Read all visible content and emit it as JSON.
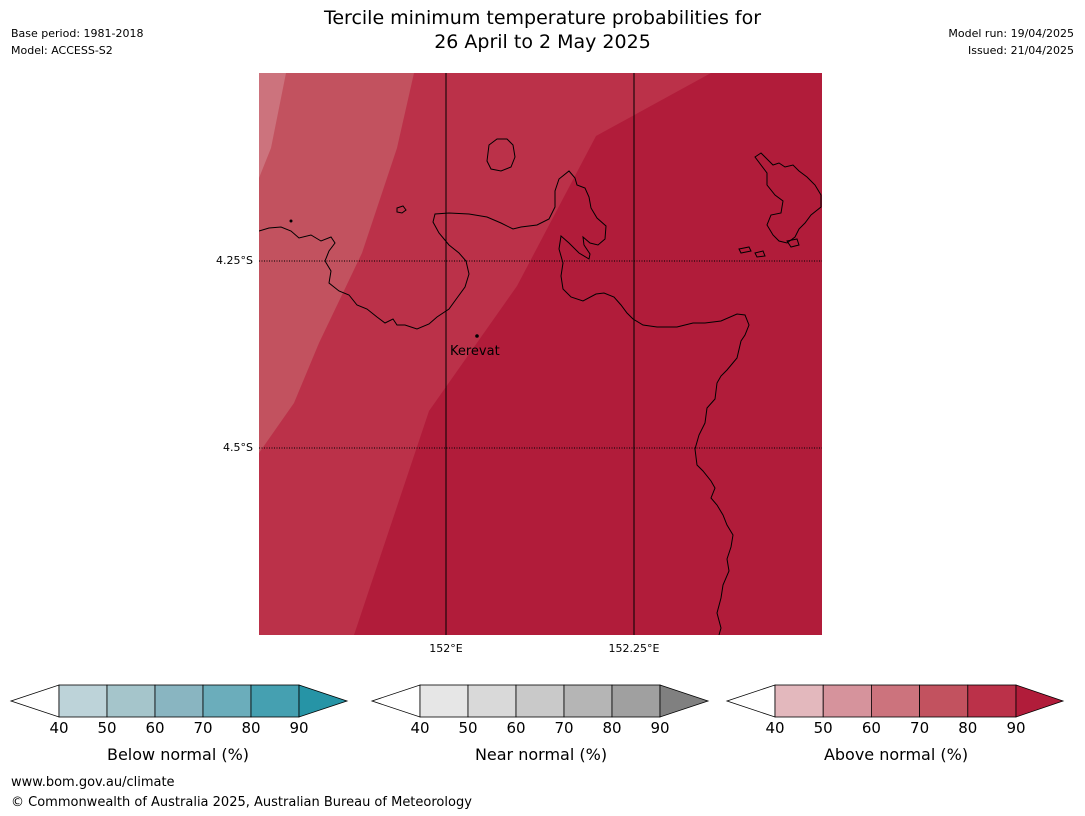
{
  "meta": {
    "base_period": "Base period: 1981-2018",
    "model": "Model: ACCESS-S2",
    "model_run": "Model run: 19/04/2025",
    "issued": "Issued: 21/04/2025"
  },
  "title": {
    "line1": "Tercile minimum temperature probabilities for",
    "line2": "26 April to 2 May 2025"
  },
  "map": {
    "place_label": "Kerevat",
    "lat_labels": [
      "4.25°S",
      "4.5°S"
    ],
    "lon_labels": [
      "152°E",
      "152.25°E"
    ],
    "probability_color_dominant": "#b11c3a"
  },
  "colorbars": [
    {
      "name": "below",
      "label": "Below normal (%)",
      "ticks": [
        "40",
        "50",
        "60",
        "70",
        "80",
        "90"
      ],
      "colors": [
        "#ffffff",
        "#bdd3d9",
        "#a5c5cb",
        "#89b5c1",
        "#6badbb",
        "#45a0b1",
        "#2694a6"
      ]
    },
    {
      "name": "near",
      "label": "Near normal (%)",
      "ticks": [
        "40",
        "50",
        "60",
        "70",
        "80",
        "90"
      ],
      "colors": [
        "#ffffff",
        "#e6e6e6",
        "#d9d9d9",
        "#c9c9c9",
        "#b5b5b5",
        "#a0a0a0",
        "#808080"
      ]
    },
    {
      "name": "above",
      "label": "Above normal (%)",
      "ticks": [
        "40",
        "50",
        "60",
        "70",
        "80",
        "90"
      ],
      "colors": [
        "#ffffff",
        "#e3b8bd",
        "#d6939c",
        "#cc737d",
        "#c2525f",
        "#bb3149",
        "#b11c3a"
      ]
    }
  ],
  "footer": {
    "url": "www.bom.gov.au/climate",
    "copyright": "© Commonwealth of Australia 2025, Australian Bureau of Meteorology"
  }
}
